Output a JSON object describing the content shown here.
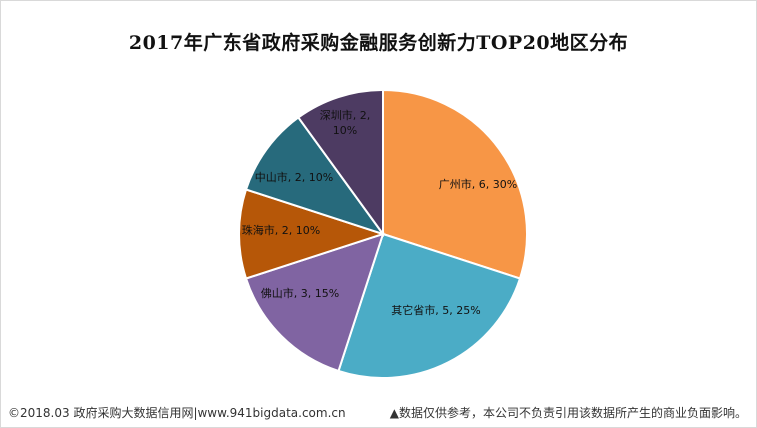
{
  "chart_data": {
    "type": "pie",
    "title": "2017年广东省政府采购金融服务创新力TOP20地区分布",
    "slices": [
      {
        "label": "广州市",
        "value": 6,
        "percent": "30%",
        "color": "#F79646"
      },
      {
        "label": "其它省市",
        "value": 5,
        "percent": "25%",
        "color": "#4BACC6"
      },
      {
        "label": "佛山市",
        "value": 3,
        "percent": "15%",
        "color": "#8064A2"
      },
      {
        "label": "珠海市",
        "value": 2,
        "percent": "10%",
        "color": "#B65708"
      },
      {
        "label": "中山市",
        "value": 2,
        "percent": "10%",
        "color": "#276A7C"
      },
      {
        "label": "深圳市",
        "value": 2,
        "percent": "10%",
        "color": "#4D3B62"
      }
    ],
    "label_format": "{label}, {value}, {percent}",
    "legend": "none"
  },
  "footer": {
    "left": "©2018.03 政府采购大数据信用网|www.941bigdata.com.cn",
    "right": "▲数据仅供参考，本公司不负责引用该数据所产生的商业负面影响。"
  }
}
